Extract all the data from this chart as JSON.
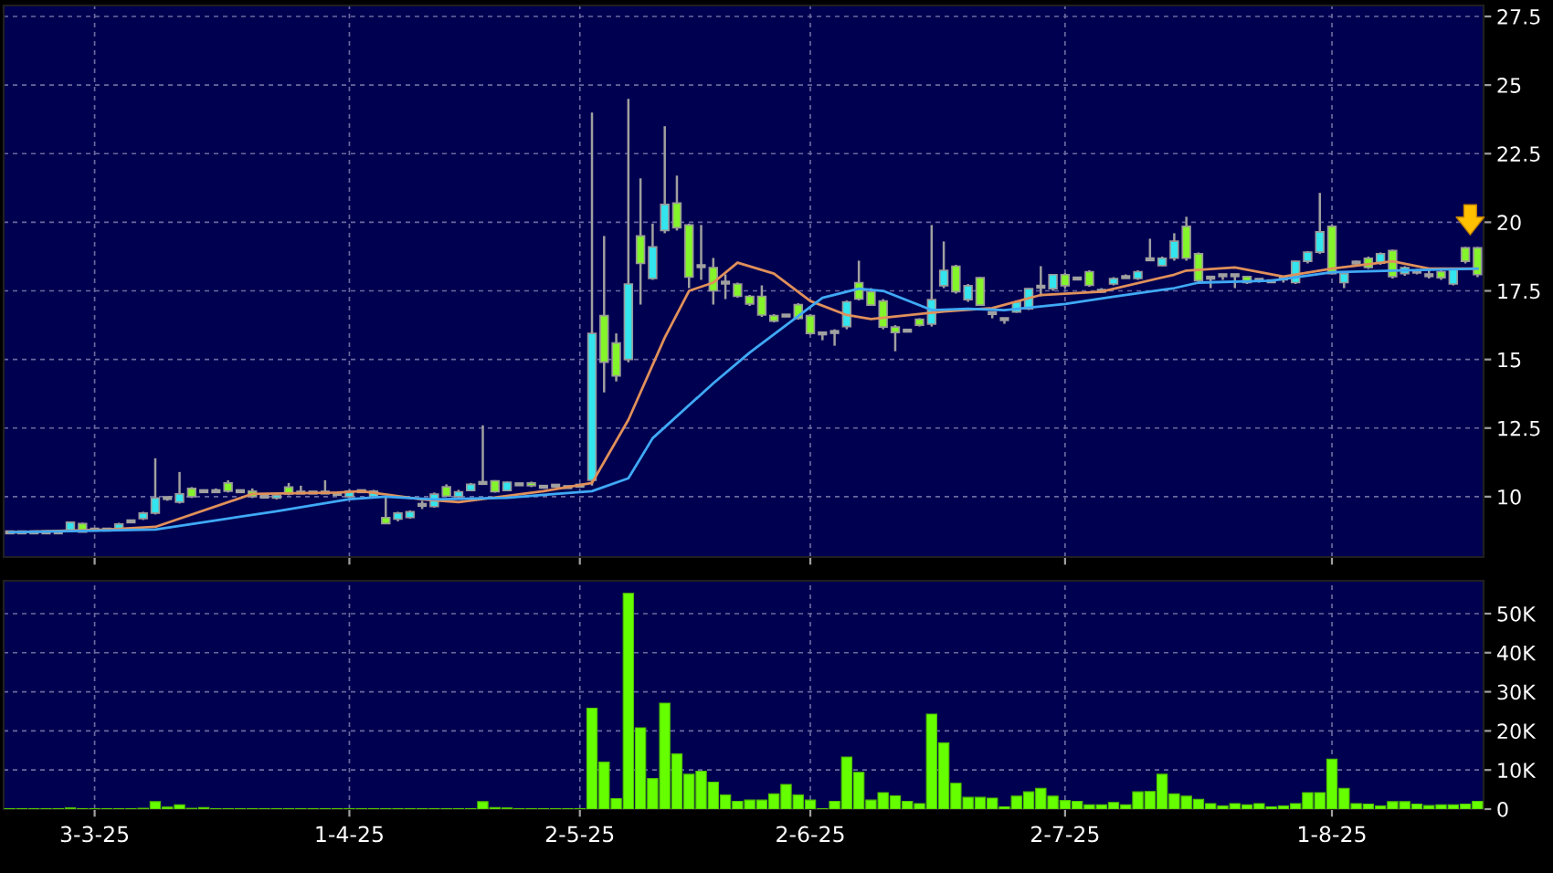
{
  "chart_data": [
    {
      "type": "candlestick",
      "tick_labels": "y",
      "grid": true,
      "ylim": [
        7.8,
        27.9
      ],
      "yticks": [
        10,
        12.5,
        15,
        17.5,
        20,
        22.5,
        25,
        27.5
      ],
      "categories": [
        null,
        null,
        null,
        null,
        null,
        null,
        null,
        null,
        null,
        null,
        null,
        null,
        null,
        null,
        null,
        null,
        null,
        null,
        null,
        null,
        null,
        null,
        null,
        null,
        null,
        null,
        null,
        null,
        null,
        null,
        null,
        null,
        null,
        null,
        null,
        null,
        null,
        null,
        null,
        null,
        null,
        null,
        null,
        null,
        null,
        null,
        null,
        null,
        null,
        null,
        null,
        null,
        null,
        null,
        null,
        null,
        null,
        null,
        null,
        null,
        null,
        null,
        null,
        null,
        null,
        null,
        null,
        null,
        null,
        null,
        null,
        null,
        null,
        null,
        null,
        null,
        null,
        null,
        null,
        null,
        null,
        null,
        null,
        null,
        null,
        null,
        null,
        null,
        null,
        null,
        null,
        null,
        null,
        null,
        null,
        null,
        null,
        null,
        null,
        null,
        null,
        null,
        null,
        null,
        null,
        null,
        null,
        null,
        null,
        null,
        null,
        null,
        null,
        null,
        null,
        null,
        null,
        null,
        null,
        null,
        null,
        null
      ],
      "ohlc": [
        [
          8.7,
          8.75,
          8.65,
          8.7
        ],
        [
          8.7,
          8.75,
          8.65,
          8.7
        ],
        [
          8.7,
          8.75,
          8.65,
          8.7
        ],
        [
          8.7,
          8.75,
          8.65,
          8.7
        ],
        [
          8.7,
          8.75,
          8.65,
          8.7
        ],
        [
          8.75,
          9.1,
          8.7,
          9.07
        ],
        [
          9.02,
          9.05,
          8.7,
          8.71
        ],
        [
          8.8,
          8.85,
          8.75,
          8.8
        ],
        [
          8.8,
          8.85,
          8.75,
          8.8
        ],
        [
          8.8,
          9.05,
          8.78,
          9.0
        ],
        [
          9.1,
          9.15,
          9.05,
          9.1
        ],
        [
          9.2,
          9.45,
          9.15,
          9.4
        ],
        [
          9.4,
          11.4,
          9.35,
          9.95
        ],
        [
          9.95,
          10.0,
          9.85,
          9.95
        ],
        [
          9.8,
          10.9,
          9.75,
          10.1
        ],
        [
          10.3,
          10.35,
          9.95,
          10.0
        ],
        [
          10.2,
          10.25,
          10.15,
          10.2
        ],
        [
          10.2,
          10.3,
          10.15,
          10.2
        ],
        [
          10.5,
          10.6,
          10.15,
          10.2
        ],
        [
          10.2,
          10.25,
          10.15,
          10.2
        ],
        [
          10.2,
          10.3,
          9.95,
          10.0
        ],
        [
          10.0,
          10.05,
          9.95,
          10.0
        ],
        [
          9.95,
          10.1,
          9.9,
          10.05
        ],
        [
          10.35,
          10.5,
          10.05,
          10.1
        ],
        [
          10.15,
          10.4,
          10.1,
          10.15
        ],
        [
          10.15,
          10.2,
          10.1,
          10.15
        ],
        [
          10.15,
          10.6,
          10.1,
          10.15
        ],
        [
          10.1,
          10.15,
          10.05,
          10.1
        ],
        [
          10.0,
          10.25,
          9.95,
          10.2
        ],
        [
          10.2,
          10.25,
          10.15,
          10.2
        ],
        [
          10.0,
          10.25,
          9.95,
          10.2
        ],
        [
          9.24,
          10.0,
          9.0,
          9.02
        ],
        [
          9.18,
          9.45,
          9.1,
          9.4
        ],
        [
          9.24,
          9.5,
          9.2,
          9.45
        ],
        [
          9.7,
          9.85,
          9.55,
          9.7
        ],
        [
          9.64,
          10.15,
          9.6,
          10.09
        ],
        [
          10.36,
          10.45,
          10.0,
          10.02
        ],
        [
          10.0,
          10.25,
          9.95,
          10.18
        ],
        [
          10.22,
          10.5,
          10.2,
          10.45
        ],
        [
          10.5,
          12.6,
          10.45,
          10.5
        ],
        [
          10.58,
          10.6,
          10.15,
          10.18
        ],
        [
          10.22,
          10.55,
          10.2,
          10.53
        ],
        [
          10.45,
          10.5,
          10.4,
          10.45
        ],
        [
          10.5,
          10.55,
          10.35,
          10.4
        ],
        [
          10.36,
          10.4,
          10.3,
          10.36
        ],
        [
          10.4,
          10.45,
          10.35,
          10.4
        ],
        [
          10.35,
          10.4,
          10.3,
          10.35
        ],
        [
          10.4,
          10.45,
          10.35,
          10.4
        ],
        [
          10.6,
          24.0,
          10.4,
          15.95
        ],
        [
          16.6,
          19.5,
          13.8,
          14.9
        ],
        [
          15.6,
          15.95,
          14.2,
          14.4
        ],
        [
          15.0,
          24.5,
          14.9,
          17.75
        ],
        [
          19.5,
          21.6,
          17.0,
          18.5
        ],
        [
          17.95,
          19.95,
          17.9,
          19.1
        ],
        [
          19.7,
          23.5,
          19.6,
          20.65
        ],
        [
          20.7,
          21.7,
          19.7,
          19.8
        ],
        [
          19.9,
          19.95,
          17.6,
          18.0
        ],
        [
          18.4,
          19.9,
          17.9,
          18.4
        ],
        [
          18.35,
          18.7,
          17.0,
          17.5
        ],
        [
          17.8,
          18.1,
          17.2,
          17.8
        ],
        [
          17.75,
          17.8,
          17.25,
          17.3
        ],
        [
          17.3,
          17.35,
          16.95,
          17.02
        ],
        [
          17.3,
          17.7,
          16.55,
          16.62
        ],
        [
          16.6,
          16.65,
          16.35,
          16.4
        ],
        [
          16.6,
          16.65,
          16.55,
          16.6
        ],
        [
          17.0,
          17.05,
          16.45,
          16.5
        ],
        [
          16.6,
          16.65,
          15.9,
          15.95
        ],
        [
          15.95,
          16.0,
          15.7,
          15.95
        ],
        [
          16.0,
          16.1,
          15.5,
          16.0
        ],
        [
          16.2,
          17.15,
          16.1,
          17.1
        ],
        [
          17.8,
          18.6,
          17.15,
          17.2
        ],
        [
          17.47,
          17.6,
          16.95,
          16.98
        ],
        [
          17.13,
          17.2,
          16.1,
          16.18
        ],
        [
          16.18,
          16.25,
          15.3,
          15.98
        ],
        [
          16.05,
          16.1,
          16.0,
          16.05
        ],
        [
          16.47,
          16.5,
          16.2,
          16.25
        ],
        [
          16.29,
          19.9,
          16.2,
          17.18
        ],
        [
          17.69,
          19.3,
          17.6,
          18.25
        ],
        [
          18.4,
          18.45,
          17.4,
          17.47
        ],
        [
          17.18,
          17.75,
          17.1,
          17.69
        ],
        [
          17.98,
          18.0,
          16.95,
          16.98
        ],
        [
          16.69,
          16.75,
          16.5,
          16.69
        ],
        [
          16.47,
          16.5,
          16.3,
          16.47
        ],
        [
          16.73,
          17.15,
          16.7,
          17.09
        ],
        [
          16.85,
          17.6,
          16.8,
          17.58
        ],
        [
          17.65,
          18.4,
          17.3,
          17.65
        ],
        [
          17.58,
          18.1,
          17.5,
          18.09
        ],
        [
          18.09,
          18.15,
          17.6,
          17.69
        ],
        [
          17.95,
          18.0,
          17.9,
          17.95
        ],
        [
          18.2,
          18.25,
          17.65,
          17.7
        ],
        [
          17.5,
          17.6,
          17.45,
          17.5
        ],
        [
          17.75,
          18.0,
          17.7,
          17.95
        ],
        [
          18.0,
          18.1,
          17.95,
          18.0
        ],
        [
          17.95,
          18.25,
          17.9,
          18.2
        ],
        [
          18.65,
          19.4,
          18.6,
          18.65
        ],
        [
          18.42,
          18.75,
          18.4,
          18.69
        ],
        [
          18.69,
          19.6,
          18.6,
          19.31
        ],
        [
          19.85,
          20.2,
          18.6,
          18.69
        ],
        [
          18.85,
          18.9,
          17.8,
          17.87
        ],
        [
          17.98,
          18.05,
          17.6,
          17.98
        ],
        [
          18.07,
          18.1,
          17.9,
          18.07
        ],
        [
          18.07,
          18.1,
          17.6,
          18.07
        ],
        [
          18.02,
          18.05,
          17.75,
          17.8
        ],
        [
          17.9,
          17.95,
          17.8,
          17.9
        ],
        [
          17.85,
          17.9,
          17.8,
          17.85
        ],
        [
          17.95,
          18.0,
          17.8,
          17.95
        ],
        [
          17.8,
          18.6,
          17.75,
          18.58
        ],
        [
          18.58,
          18.95,
          18.5,
          18.91
        ],
        [
          18.91,
          21.07,
          18.85,
          19.65
        ],
        [
          19.85,
          19.9,
          18.1,
          18.13
        ],
        [
          17.8,
          18.15,
          17.6,
          18.13
        ],
        [
          18.53,
          18.6,
          18.45,
          18.53
        ],
        [
          18.69,
          18.75,
          18.3,
          18.35
        ],
        [
          18.51,
          18.9,
          18.45,
          18.85
        ],
        [
          18.97,
          19.0,
          17.95,
          18.02
        ],
        [
          18.13,
          18.4,
          18.05,
          18.35
        ],
        [
          18.2,
          18.3,
          18.1,
          18.2
        ],
        [
          18.07,
          18.25,
          17.95,
          18.07
        ],
        [
          18.2,
          18.25,
          17.9,
          17.98
        ],
        [
          17.75,
          18.3,
          17.7,
          18.29
        ],
        [
          19.07,
          19.1,
          18.5,
          18.58
        ],
        [
          19.07,
          19.1,
          18.0,
          18.09
        ]
      ],
      "colors": [
        "#a0a0a0",
        "#a0a0a0",
        "#a0a0a0",
        "#a0a0a0",
        "#a0a0a0",
        "#33e5ee",
        "#84f52a",
        "#a0a0a0",
        "#a0a0a0",
        "#33e5ee",
        "#a0a0a0",
        "#33e5ee",
        "#33e5ee",
        "#a0a0a0",
        "#33e5ee",
        "#84f52a",
        "#a0a0a0",
        "#a0a0a0",
        "#84f52a",
        "#a0a0a0",
        "#84f52a",
        "#a0a0a0",
        "#33e5ee",
        "#84f52a",
        "#a0a0a0",
        "#a0a0a0",
        "#a0a0a0",
        "#a0a0a0",
        "#33e5ee",
        "#a0a0a0",
        "#33e5ee",
        "#84f52a",
        "#33e5ee",
        "#33e5ee",
        "#a0a0a0",
        "#33e5ee",
        "#84f52a",
        "#33e5ee",
        "#33e5ee",
        "#a0a0a0",
        "#84f52a",
        "#33e5ee",
        "#a0a0a0",
        "#84f52a",
        "#a0a0a0",
        "#a0a0a0",
        "#a0a0a0",
        "#a0a0a0",
        "#33e5ee",
        "#84f52a",
        "#84f52a",
        "#33e5ee",
        "#84f52a",
        "#33e5ee",
        "#33e5ee",
        "#84f52a",
        "#84f52a",
        "#a0a0a0",
        "#84f52a",
        "#a0a0a0",
        "#84f52a",
        "#84f52a",
        "#84f52a",
        "#84f52a",
        "#a0a0a0",
        "#84f52a",
        "#84f52a",
        "#a0a0a0",
        "#a0a0a0",
        "#33e5ee",
        "#84f52a",
        "#84f52a",
        "#84f52a",
        "#84f52a",
        "#a0a0a0",
        "#84f52a",
        "#33e5ee",
        "#33e5ee",
        "#84f52a",
        "#33e5ee",
        "#84f52a",
        "#a0a0a0",
        "#a0a0a0",
        "#33e5ee",
        "#33e5ee",
        "#a0a0a0",
        "#33e5ee",
        "#84f52a",
        "#a0a0a0",
        "#84f52a",
        "#a0a0a0",
        "#33e5ee",
        "#a0a0a0",
        "#33e5ee",
        "#a0a0a0",
        "#33e5ee",
        "#33e5ee",
        "#84f52a",
        "#84f52a",
        "#a0a0a0",
        "#a0a0a0",
        "#a0a0a0",
        "#84f52a",
        "#a0a0a0",
        "#a0a0a0",
        "#a0a0a0",
        "#33e5ee",
        "#33e5ee",
        "#33e5ee",
        "#84f52a",
        "#33e5ee",
        "#a0a0a0",
        "#84f52a",
        "#33e5ee",
        "#84f52a",
        "#33e5ee",
        "#a0a0a0",
        "#a0a0a0",
        "#84f52a",
        "#33e5ee",
        "#84f52a",
        "#84f52a"
      ],
      "series": [
        {
          "type": "line",
          "color": "#e0905a",
          "values": [
            8.7,
            null,
            null,
            null,
            null,
            null,
            null,
            null,
            8.8,
            null,
            null,
            null,
            8.9,
            null,
            null,
            null,
            null,
            null,
            null,
            null,
            10.1,
            null,
            null,
            null,
            null,
            null,
            null,
            10.15,
            null,
            10.2,
            null,
            null,
            null,
            null,
            9.9,
            null,
            null,
            9.8,
            null,
            null,
            null,
            null,
            null,
            null,
            10.2,
            null,
            null,
            null,
            10.5,
            null,
            null,
            12.8,
            null,
            null,
            15.8,
            null,
            17.5,
            null,
            17.8,
            null,
            18.53,
            null,
            null,
            18.13,
            null,
            null,
            17.13,
            null,
            null,
            16.62,
            null,
            16.47,
            null,
            null,
            null,
            null,
            null,
            16.75,
            null,
            null,
            null,
            16.87,
            null,
            null,
            null,
            17.35,
            null,
            null,
            null,
            null,
            17.47,
            null,
            null,
            null,
            null,
            null,
            18.09,
            18.24,
            null,
            null,
            null,
            18.35,
            null,
            null,
            null,
            18.02,
            null,
            null,
            null,
            18.31,
            null,
            null,
            null,
            null,
            18.58,
            null,
            null,
            18.31,
            null,
            null,
            null,
            18.31
          ]
        },
        {
          "type": "line",
          "color": "#3fa9f5",
          "values": [
            8.7,
            null,
            null,
            null,
            null,
            null,
            null,
            null,
            null,
            null,
            null,
            null,
            8.8,
            null,
            null,
            null,
            9.07,
            null,
            null,
            null,
            null,
            null,
            9.47,
            null,
            null,
            null,
            null,
            null,
            9.91,
            null,
            null,
            10.0,
            null,
            null,
            null,
            9.9,
            null,
            null,
            null,
            null,
            null,
            9.96,
            null,
            null,
            null,
            10.1,
            null,
            null,
            10.2,
            null,
            null,
            10.67,
            null,
            12.13,
            null,
            null,
            null,
            null,
            14.13,
            null,
            null,
            15.25,
            null,
            null,
            16.25,
            null,
            null,
            17.25,
            null,
            null,
            17.58,
            null,
            17.5,
            null,
            null,
            null,
            16.8,
            null,
            null,
            16.85,
            null,
            null,
            16.8,
            null,
            null,
            null,
            null,
            17.02,
            null,
            null,
            null,
            17.29,
            null,
            null,
            null,
            null,
            17.6,
            null,
            17.8,
            null,
            null,
            null,
            null,
            null,
            17.87,
            null,
            null,
            null,
            null,
            18.18,
            null,
            null,
            null,
            null,
            18.24,
            null,
            null,
            null,
            null,
            null,
            null,
            18.31
          ]
        }
      ]
    },
    {
      "type": "bar",
      "grid": true,
      "color": "#66ff00",
      "ylim": [
        0,
        58.4
      ],
      "yticks": [
        0,
        {
          "value": 10,
          "label": "10K"
        },
        {
          "value": 20,
          "label": "20K"
        },
        {
          "value": 30,
          "label": "30K"
        },
        {
          "value": 40,
          "label": "40K"
        },
        {
          "value": 50,
          "label": "50K"
        }
      ],
      "categories": [
        null,
        null,
        null,
        null,
        null,
        null,
        null,
        "3-3-25",
        null,
        null,
        null,
        null,
        null,
        null,
        null,
        null,
        null,
        null,
        null,
        null,
        null,
        null,
        null,
        null,
        null,
        null,
        null,
        null,
        "1-4-25",
        null,
        null,
        null,
        null,
        null,
        null,
        null,
        null,
        null,
        null,
        null,
        null,
        null,
        null,
        null,
        null,
        null,
        null,
        "2-5-25",
        null,
        null,
        null,
        null,
        null,
        null,
        null,
        null,
        null,
        null,
        null,
        null,
        null,
        null,
        null,
        null,
        null,
        null,
        "2-6-25",
        null,
        null,
        null,
        null,
        null,
        null,
        null,
        null,
        null,
        null,
        null,
        null,
        null,
        null,
        null,
        null,
        null,
        null,
        null,
        null,
        "2-7-25",
        null,
        null,
        null,
        null,
        null,
        null,
        null,
        null,
        null,
        null,
        null,
        null,
        null,
        null,
        null,
        null,
        null,
        null,
        null,
        null,
        null,
        "1-8-25",
        null,
        null,
        null,
        null,
        null,
        null,
        null,
        null,
        null,
        null,
        null,
        null
      ],
      "values": [
        0.1,
        0.1,
        0.1,
        0.1,
        0.1,
        0.3,
        0.1,
        0.1,
        0.1,
        0.1,
        0.1,
        0.2,
        1.9,
        0.5,
        1.1,
        0.2,
        0.4,
        0.1,
        0.1,
        0.1,
        0.1,
        0.1,
        0.1,
        0.1,
        0.1,
        0.1,
        0.1,
        0.1,
        0.1,
        0.1,
        0.1,
        0.1,
        0.1,
        0.1,
        0.1,
        0.1,
        0.1,
        0.1,
        0.1,
        1.9,
        0.4,
        0.3,
        0.1,
        0.1,
        0.1,
        0.1,
        0.1,
        0.1,
        25.8,
        12.0,
        2.7,
        55.2,
        20.8,
        7.8,
        27.1,
        14.1,
        8.9,
        9.7,
        6.9,
        3.6,
        2.0,
        2.3,
        2.3,
        3.9,
        6.3,
        3.6,
        2.3,
        0.1,
        2.0,
        13.3,
        9.4,
        2.3,
        4.2,
        3.4,
        2.0,
        1.4,
        24.3,
        16.9,
        6.6,
        3.0,
        3.0,
        2.8,
        0.6,
        3.3,
        4.4,
        5.3,
        3.3,
        2.2,
        2.0,
        1.1,
        1.1,
        1.7,
        1.1,
        4.4,
        4.5,
        8.9,
        3.9,
        3.3,
        2.5,
        1.4,
        0.8,
        1.4,
        1.1,
        1.4,
        0.6,
        0.8,
        1.4,
        4.2,
        4.2,
        12.8,
        5.3,
        1.4,
        1.3,
        0.8,
        1.9,
        1.9,
        1.3,
        0.9,
        1.1,
        1.1,
        1.3,
        2.0
      ]
    }
  ]
}
